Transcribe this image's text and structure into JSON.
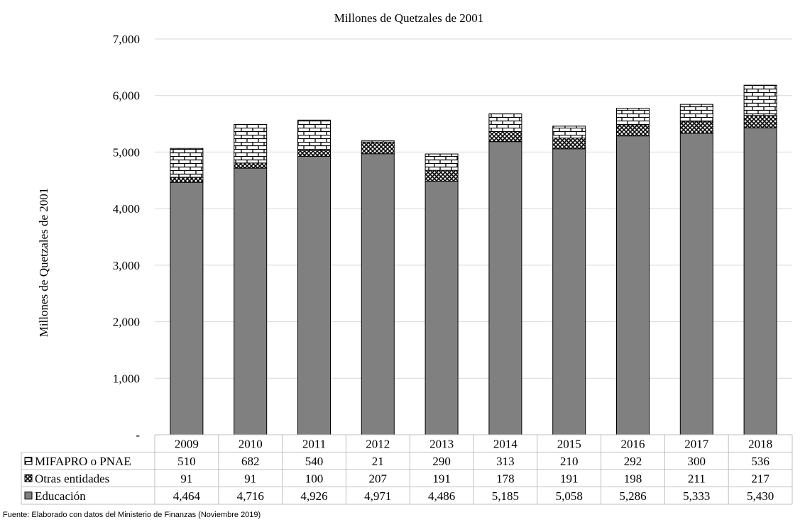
{
  "chart_data": {
    "type": "bar",
    "stacked": true,
    "title": "Millones de Quetzales de 2001",
    "ylabel": "Millones de Quetzales de 2001",
    "xlabel": "",
    "ylim": [
      0,
      7000
    ],
    "yticks": [
      0,
      1000,
      2000,
      3000,
      4000,
      5000,
      6000,
      7000
    ],
    "ytick_labels": [
      "-",
      "1,000",
      "2,000",
      "3,000",
      "4,000",
      "5,000",
      "6,000",
      "7,000"
    ],
    "grid": true,
    "categories": [
      "2009",
      "2010",
      "2011",
      "2012",
      "2013",
      "2014",
      "2015",
      "2016",
      "2017",
      "2018"
    ],
    "series": [
      {
        "name": "Educación",
        "pattern": "solid",
        "color": "#808080",
        "values": [
          4464,
          4716,
          4926,
          4971,
          4486,
          5185,
          5058,
          5286,
          5333,
          5430
        ],
        "labels": [
          "4,464",
          "4,716",
          "4,926",
          "4,971",
          "4,486",
          "5,185",
          "5,058",
          "5,286",
          "5,333",
          "5,430"
        ]
      },
      {
        "name": "Otras entidades",
        "pattern": "crosshatch",
        "color": "#7f7f7f",
        "values": [
          91,
          91,
          100,
          207,
          191,
          178,
          191,
          198,
          211,
          217
        ],
        "labels": [
          "91",
          "91",
          "100",
          "207",
          "191",
          "178",
          "191",
          "198",
          "211",
          "217"
        ]
      },
      {
        "name": "MIFAPRO o PNAE",
        "pattern": "brick",
        "color": "#ffffff",
        "values": [
          510,
          682,
          540,
          21,
          290,
          313,
          210,
          292,
          300,
          536
        ],
        "labels": [
          "510",
          "682",
          "540",
          "21",
          "290",
          "313",
          "210",
          "292",
          "300",
          "536"
        ]
      }
    ],
    "table_row_order": [
      "MIFAPRO o PNAE",
      "Otras entidades",
      "Educación"
    ]
  },
  "source": "Fuente: Elaborado con datos del Ministerio de Finanzas (Noviembre 2019)"
}
